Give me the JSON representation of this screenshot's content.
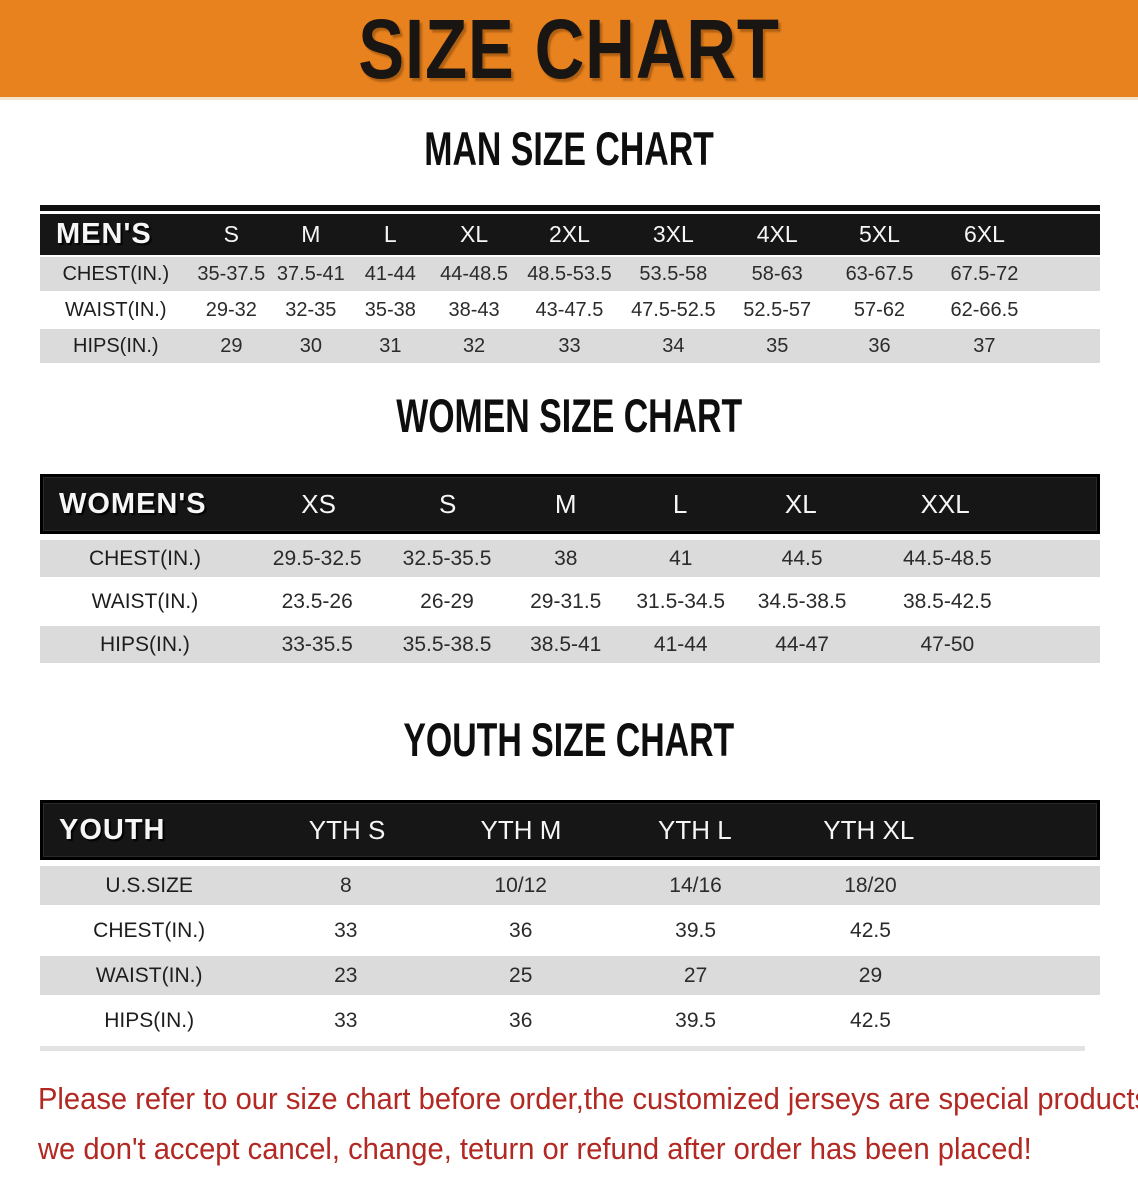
{
  "banner": {
    "title": "SIZE CHART"
  },
  "colors": {
    "banner_bg": "#E8821E",
    "header_bar": "#161616",
    "row_stripe": "#DBDBDB",
    "disclaimer_text": "#B22822"
  },
  "sections": [
    {
      "heading": "MAN SIZE CHART",
      "table": {
        "label": "MEN'S",
        "columns": [
          "S",
          "M",
          "L",
          "XL",
          "2XL",
          "3XL",
          "4XL",
          "5XL",
          "6XL"
        ],
        "rows": [
          {
            "label": "CHEST(IN.)",
            "values": [
              "35-37.5",
              "37.5-41",
              "41-44",
              "44-48.5",
              "48.5-53.5",
              "53.5-58",
              "58-63",
              "63-67.5",
              "67.5-72"
            ]
          },
          {
            "label": "WAIST(IN.)",
            "values": [
              "29-32",
              "32-35",
              "35-38",
              "38-43",
              "43-47.5",
              "47.5-52.5",
              "52.5-57",
              "57-62",
              "62-66.5"
            ]
          },
          {
            "label": "HIPS(IN.)",
            "values": [
              "29",
              "30",
              "31",
              "32",
              "33",
              "34",
              "35",
              "36",
              "37"
            ]
          }
        ]
      }
    },
    {
      "heading": "WOMEN SIZE CHART",
      "table": {
        "label": "WOMEN'S",
        "columns": [
          "XS",
          "S",
          "M",
          "L",
          "XL",
          "XXL"
        ],
        "rows": [
          {
            "label": "CHEST(IN.)",
            "values": [
              "29.5-32.5",
              "32.5-35.5",
              "38",
              "41",
              "44.5",
              "44.5-48.5"
            ]
          },
          {
            "label": "WAIST(IN.)",
            "values": [
              "23.5-26",
              "26-29",
              "29-31.5",
              "31.5-34.5",
              "34.5-38.5",
              "38.5-42.5"
            ]
          },
          {
            "label": "HIPS(IN.)",
            "values": [
              "33-35.5",
              "35.5-38.5",
              "38.5-41",
              "41-44",
              "44-47",
              "47-50"
            ]
          }
        ]
      }
    },
    {
      "heading": "YOUTH SIZE CHART",
      "table": {
        "label": "YOUTH",
        "columns": [
          "YTH S",
          "YTH M",
          "YTH L",
          "YTH XL"
        ],
        "rows": [
          {
            "label": "U.S.SIZE",
            "values": [
              "8",
              "10/12",
              "14/16",
              "18/20"
            ]
          },
          {
            "label": "CHEST(IN.)",
            "values": [
              "33",
              "36",
              "39.5",
              "42.5"
            ]
          },
          {
            "label": "WAIST(IN.)",
            "values": [
              "23",
              "25",
              "27",
              "29"
            ]
          },
          {
            "label": "HIPS(IN.)",
            "values": [
              "33",
              "36",
              "39.5",
              "42.5"
            ]
          }
        ]
      }
    }
  ],
  "disclaimer": {
    "line1": "Please refer to our size chart before order,the customized jerseys are special products,",
    "line2": "we don't accept cancel, change, teturn or refund after order has been placed!"
  }
}
